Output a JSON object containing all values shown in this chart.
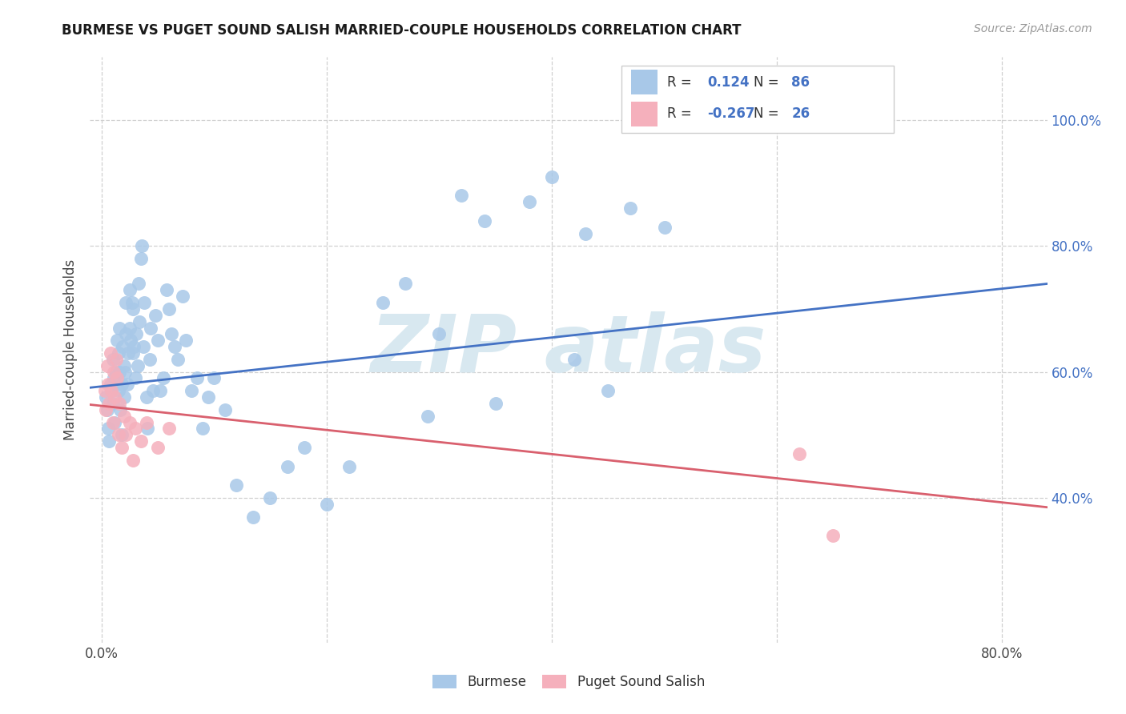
{
  "title": "BURMESE VS PUGET SOUND SALISH MARRIED-COUPLE HOUSEHOLDS CORRELATION CHART",
  "source": "Source: ZipAtlas.com",
  "ylabel": "Married-couple Households",
  "x_tick_labels": [
    "0.0%",
    "",
    "",
    "",
    "80.0%"
  ],
  "x_tick_vals": [
    0.0,
    0.2,
    0.4,
    0.6,
    0.8
  ],
  "y_tick_labels": [
    "40.0%",
    "60.0%",
    "80.0%",
    "100.0%"
  ],
  "y_tick_vals": [
    0.4,
    0.6,
    0.8,
    1.0
  ],
  "xlim": [
    -0.01,
    0.84
  ],
  "ylim": [
    0.17,
    1.1
  ],
  "burmese_R": "0.124",
  "burmese_N": "86",
  "salish_R": "-0.267",
  "salish_N": "26",
  "burmese_color": "#a8c8e8",
  "salish_color": "#f5b0bc",
  "burmese_line_color": "#4472c4",
  "salish_line_color": "#d9606e",
  "watermark_color": "#d8e8f0",
  "grid_color": "#d0d0d0",
  "burmese_line_y0": 0.575,
  "burmese_line_y1": 0.74,
  "salish_line_y0": 0.548,
  "salish_line_y1": 0.385,
  "burmese_x": [
    0.004,
    0.005,
    0.006,
    0.007,
    0.008,
    0.009,
    0.01,
    0.01,
    0.011,
    0.012,
    0.013,
    0.014,
    0.015,
    0.015,
    0.016,
    0.016,
    0.017,
    0.018,
    0.018,
    0.019,
    0.02,
    0.02,
    0.021,
    0.022,
    0.022,
    0.023,
    0.024,
    0.025,
    0.025,
    0.026,
    0.027,
    0.028,
    0.028,
    0.029,
    0.03,
    0.031,
    0.032,
    0.033,
    0.034,
    0.035,
    0.036,
    0.037,
    0.038,
    0.04,
    0.041,
    0.043,
    0.044,
    0.046,
    0.048,
    0.05,
    0.052,
    0.055,
    0.058,
    0.06,
    0.062,
    0.065,
    0.068,
    0.072,
    0.075,
    0.08,
    0.085,
    0.09,
    0.095,
    0.1,
    0.11,
    0.12,
    0.135,
    0.15,
    0.165,
    0.18,
    0.2,
    0.22,
    0.25,
    0.27,
    0.3,
    0.34,
    0.38,
    0.43,
    0.47,
    0.29,
    0.32,
    0.35,
    0.4,
    0.45,
    0.5,
    0.42
  ],
  "burmese_y": [
    0.56,
    0.54,
    0.51,
    0.49,
    0.58,
    0.57,
    0.62,
    0.55,
    0.59,
    0.52,
    0.6,
    0.65,
    0.57,
    0.63,
    0.6,
    0.67,
    0.54,
    0.5,
    0.58,
    0.64,
    0.56,
    0.61,
    0.6,
    0.66,
    0.71,
    0.58,
    0.63,
    0.73,
    0.67,
    0.65,
    0.71,
    0.63,
    0.7,
    0.64,
    0.59,
    0.66,
    0.61,
    0.74,
    0.68,
    0.78,
    0.8,
    0.64,
    0.71,
    0.56,
    0.51,
    0.62,
    0.67,
    0.57,
    0.69,
    0.65,
    0.57,
    0.59,
    0.73,
    0.7,
    0.66,
    0.64,
    0.62,
    0.72,
    0.65,
    0.57,
    0.59,
    0.51,
    0.56,
    0.59,
    0.54,
    0.42,
    0.37,
    0.4,
    0.45,
    0.48,
    0.39,
    0.45,
    0.71,
    0.74,
    0.66,
    0.84,
    0.87,
    0.82,
    0.86,
    0.53,
    0.88,
    0.55,
    0.91,
    0.57,
    0.83,
    0.62
  ],
  "salish_x": [
    0.003,
    0.004,
    0.005,
    0.006,
    0.007,
    0.008,
    0.009,
    0.01,
    0.011,
    0.012,
    0.013,
    0.014,
    0.015,
    0.016,
    0.018,
    0.02,
    0.022,
    0.025,
    0.028,
    0.03,
    0.035,
    0.04,
    0.05,
    0.06,
    0.62,
    0.65
  ],
  "salish_y": [
    0.57,
    0.54,
    0.61,
    0.58,
    0.55,
    0.63,
    0.57,
    0.52,
    0.6,
    0.56,
    0.62,
    0.59,
    0.5,
    0.55,
    0.48,
    0.53,
    0.5,
    0.52,
    0.46,
    0.51,
    0.49,
    0.52,
    0.48,
    0.51,
    0.47,
    0.34
  ]
}
